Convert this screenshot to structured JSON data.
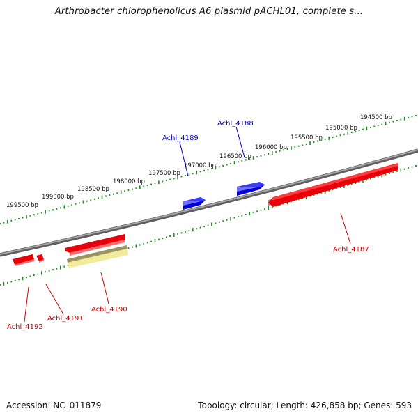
{
  "title": "Arthrobacter chlorophenolicus A6 plasmid pACHL01, complete s...",
  "footer": {
    "accession": "Accession: NC_011879",
    "summary": "Topology: circular; Length: 426,858 bp; Genes: 593"
  },
  "scale_labels": [
    "194500 bp",
    "195000 bp",
    "195500 bp",
    "196000 bp",
    "196500 bp",
    "197000 bp",
    "197500 bp",
    "198000 bp",
    "198500 bp",
    "199000 bp",
    "199500 bp"
  ],
  "genes": [
    {
      "name": "Achl_4187",
      "strand": "forward",
      "feature": "CDS",
      "color": "#e8000b"
    },
    {
      "name": "Achl_4188",
      "strand": "reverse",
      "feature": "CDS",
      "color": "#0000e0"
    },
    {
      "name": "Achl_4189",
      "strand": "reverse",
      "feature": "CDS",
      "color": "#0000e0"
    },
    {
      "name": "Achl_4190",
      "strand": "forward",
      "feature": "pseudo",
      "color": "#f0e68c"
    },
    {
      "name": "Achl_4191",
      "strand": "forward",
      "feature": "CDS",
      "color": "#e8000b"
    },
    {
      "name": "Achl_4192",
      "strand": "forward",
      "feature": "CDS",
      "color": "#e8000b"
    }
  ],
  "colors": {
    "backbone": "#8a8a8a",
    "ticks": "#1e8c1e",
    "forward_label": "#cc0000",
    "reverse_label": "#0000cc"
  }
}
